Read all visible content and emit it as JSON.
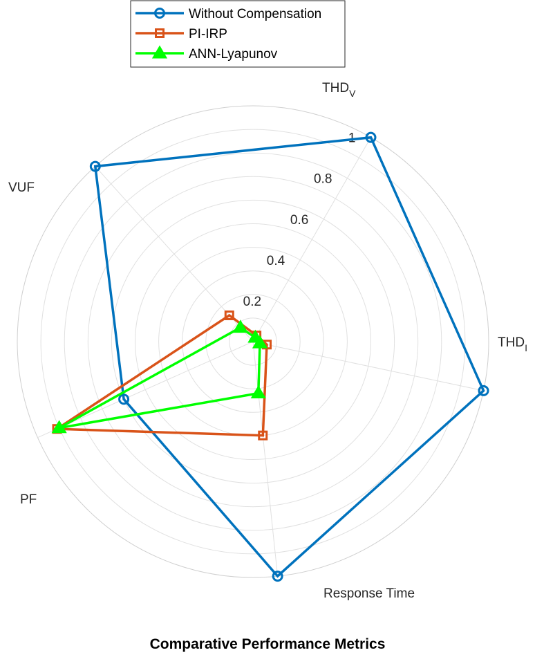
{
  "chart_data": {
    "type": "radar",
    "title": "Comparative Performance Metrics",
    "axes": [
      {
        "key": "thdv",
        "label": "THD",
        "label_sub": "V"
      },
      {
        "key": "thdi",
        "label": "THD",
        "label_sub": "I"
      },
      {
        "key": "response_time",
        "label": "Response Time",
        "label_sub": ""
      },
      {
        "key": "pf",
        "label": "PF",
        "label_sub": ""
      },
      {
        "key": "vuf",
        "label": "VUF",
        "label_sub": ""
      }
    ],
    "radial_range": [
      0,
      1
    ],
    "radial_ticks": [
      0.2,
      0.4,
      0.6,
      0.8,
      1
    ],
    "radial_tick_labels": [
      "0.2",
      "0.4",
      "0.6",
      "0.8",
      "1"
    ],
    "grid": true,
    "legend_position": "top",
    "series": [
      {
        "name": "Without Compensation",
        "color": "#0072BD",
        "marker": "circle",
        "values": [
          1.0,
          1.0,
          1.0,
          0.6,
          1.0
        ]
      },
      {
        "name": "PI-IRP",
        "color": "#D95319",
        "marker": "square",
        "values": [
          0.03,
          0.06,
          0.4,
          0.91,
          0.15
        ]
      },
      {
        "name": "ANN-Lyapunov",
        "color": "#00FF00",
        "marker": "triangle",
        "values": [
          0.02,
          0.03,
          0.22,
          0.9,
          0.08
        ]
      }
    ]
  }
}
